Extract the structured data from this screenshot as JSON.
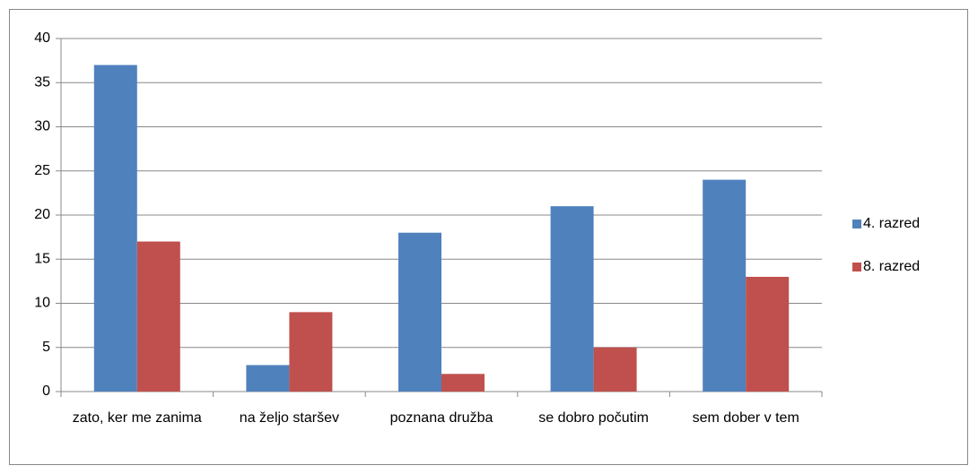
{
  "chart_data": {
    "type": "bar",
    "categories": [
      "zato, ker me zanima",
      "na željo staršev",
      "poznana družba",
      "se dobro počutim",
      "sem dober v tem"
    ],
    "series": [
      {
        "name": "4. razred",
        "color": "#4f81bd",
        "values": [
          37,
          3,
          18,
          21,
          24
        ]
      },
      {
        "name": "8. razred",
        "color": "#c0504d",
        "values": [
          17,
          9,
          2,
          5,
          13
        ]
      }
    ],
    "ylim": [
      0,
      40
    ],
    "yticks": [
      0,
      5,
      10,
      15,
      20,
      25,
      30,
      35,
      40
    ],
    "grid": true,
    "legend": "right"
  }
}
